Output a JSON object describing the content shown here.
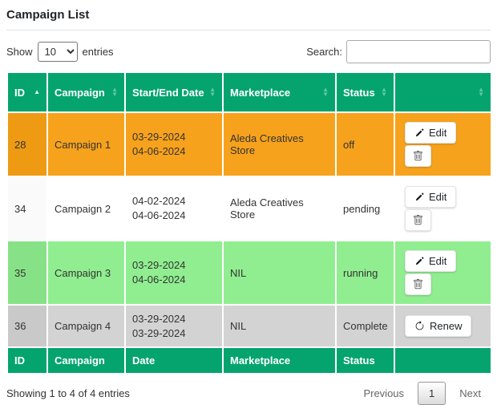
{
  "page": {
    "title": "Campaign List"
  },
  "controls": {
    "show_label": "Show",
    "entries_label": "entries",
    "page_length_selected": "10",
    "search_label": "Search:",
    "search_value": ""
  },
  "table": {
    "header_columns": [
      "ID",
      "Campaign",
      "Start/End Date",
      "Marketplace",
      "Status",
      ""
    ],
    "footer_columns": [
      "ID",
      "Campaign",
      "Date",
      "Marketplace",
      "Status",
      ""
    ],
    "sorted_column_index": 0,
    "sorted_direction": "asc",
    "action_labels": {
      "edit": "Edit",
      "renew": "Renew"
    },
    "rows": [
      {
        "id": "28",
        "campaign": "Campaign 1",
        "start_date": "03-29-2024",
        "end_date": "04-06-2024",
        "marketplace": "Aleda Creatives Store",
        "status": "off",
        "action_type": "edit_delete",
        "bg": "#f7a21c",
        "id_bg": "#ee9a13"
      },
      {
        "id": "34",
        "campaign": "Campaign 2",
        "start_date": "04-02-2024",
        "end_date": "04-06-2024",
        "marketplace": "Aleda Creatives Store",
        "status": "pending",
        "action_type": "edit_delete",
        "bg": "#ffffff",
        "id_bg": "#fafafa"
      },
      {
        "id": "35",
        "campaign": "Campaign 3",
        "start_date": "03-29-2024",
        "end_date": "04-06-2024",
        "marketplace": "NIL",
        "status": "running",
        "action_type": "edit_delete",
        "bg": "#90ee90",
        "id_bg": "#87e287"
      },
      {
        "id": "36",
        "campaign": "Campaign 4",
        "start_date": "03-29-2024",
        "end_date": "03-29-2024",
        "marketplace": "NIL",
        "status": "Complete",
        "action_type": "renew",
        "bg": "#d3d3d3",
        "id_bg": "#c9c9c9"
      }
    ]
  },
  "footer": {
    "info": "Showing 1 to 4 of 4 entries",
    "previous_label": "Previous",
    "current_page": "1",
    "next_label": "Next"
  },
  "colors": {
    "header_green": "#05a46f",
    "row_off_orange": "#f7a21c",
    "row_running_green": "#90ee90",
    "row_complete_gray": "#d3d3d3"
  }
}
